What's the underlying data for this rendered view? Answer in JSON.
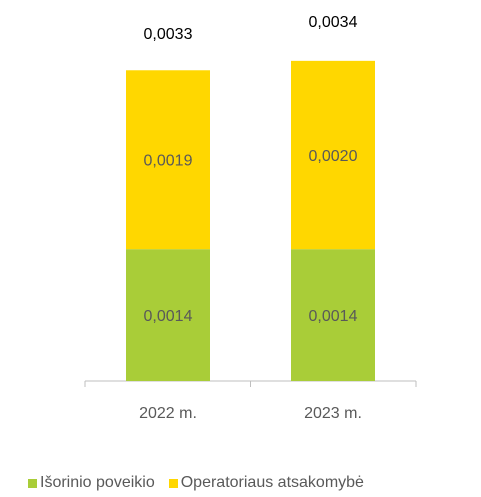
{
  "chart_data": {
    "type": "bar",
    "stacked": true,
    "categories": [
      "2022 m.",
      "2023 m."
    ],
    "series": [
      {
        "name": "Išorinio poveikio",
        "values": [
          0.0014,
          0.0014
        ],
        "labels": [
          "0,0014",
          "0,0014"
        ],
        "color": "#a9cd38"
      },
      {
        "name": "Operatoriaus atsakomybė",
        "values": [
          0.0019,
          0.002
        ],
        "labels": [
          "0,0019",
          "0,0020"
        ],
        "color": "#ffd700"
      }
    ],
    "totals": [
      0.0033,
      0.0034
    ],
    "total_labels": [
      "0,0033",
      "0,0034"
    ],
    "ylim": [
      0,
      0.0035
    ],
    "legend_position": "bottom",
    "grid": false,
    "title": "",
    "xlabel": "",
    "ylabel": ""
  }
}
